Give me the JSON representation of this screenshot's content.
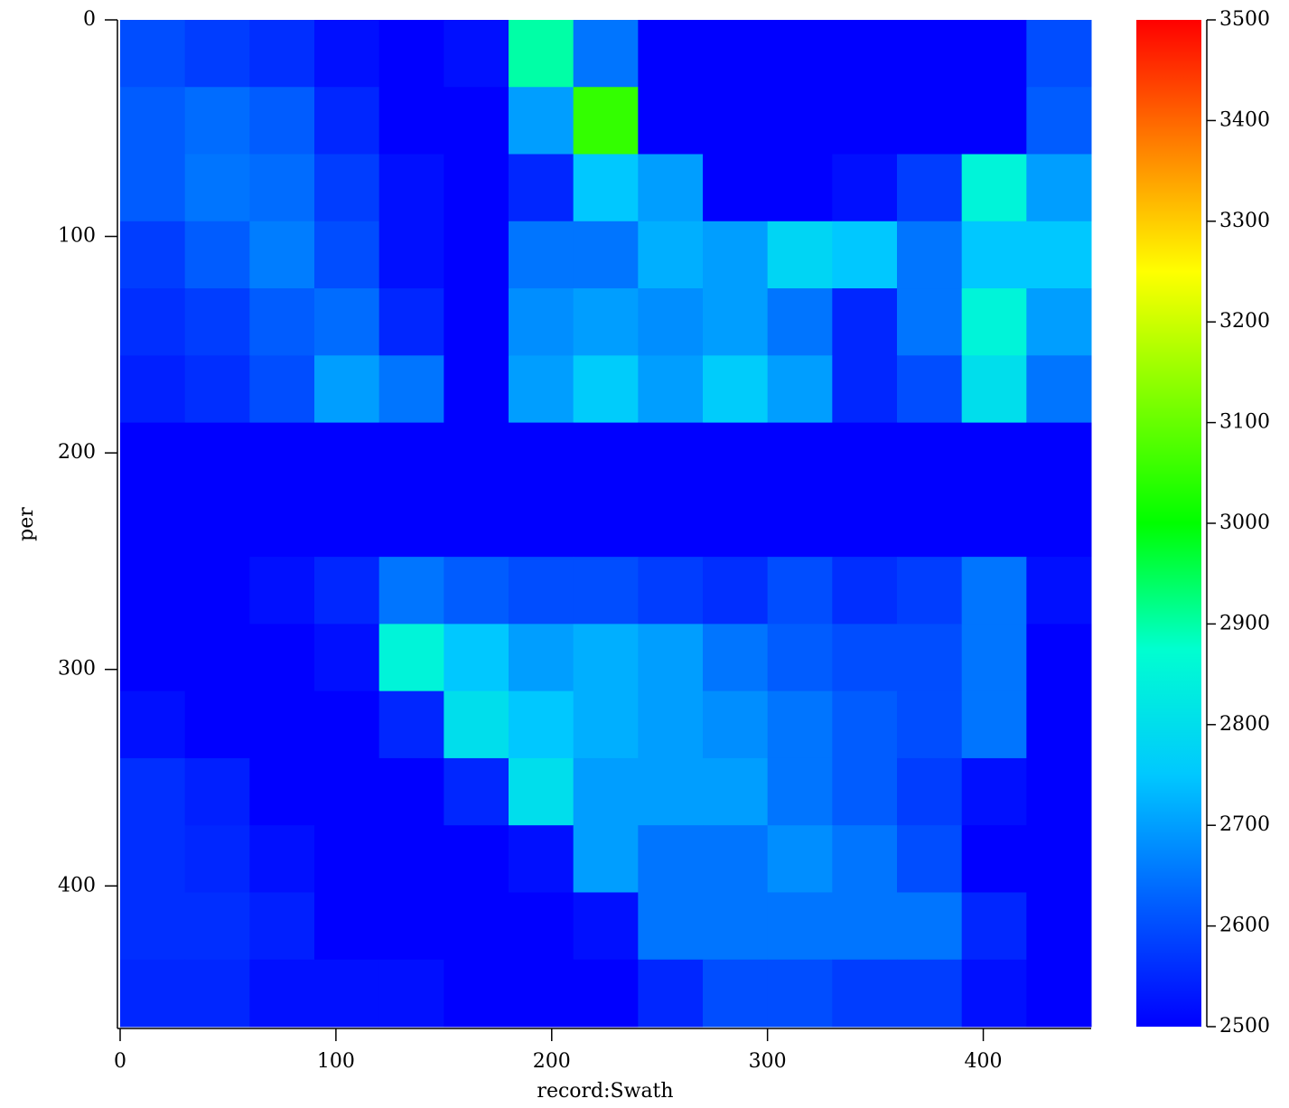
{
  "chart_data": {
    "type": "heatmap",
    "x_label": "record:Swath",
    "y_label": "per",
    "xlim": [
      0,
      450
    ],
    "ylim": [
      0,
      465
    ],
    "y_inverted": true,
    "xticks": [
      0,
      100,
      200,
      300,
      400
    ],
    "yticks": [
      0,
      100,
      200,
      300,
      400
    ],
    "xbins": [
      0,
      30,
      60,
      90,
      120,
      150,
      180,
      210,
      240,
      270,
      300,
      330,
      360,
      390,
      420,
      450
    ],
    "ybins": [
      0,
      31,
      62,
      93,
      124,
      155,
      186,
      217,
      248,
      279,
      310,
      341,
      372,
      403,
      434,
      465
    ],
    "z": [
      [
        2600,
        2580,
        2560,
        2520,
        2500,
        2520,
        2900,
        2650,
        2500,
        2500,
        2500,
        2500,
        2500,
        2500,
        2600
      ],
      [
        2620,
        2640,
        2620,
        2550,
        2500,
        2500,
        2700,
        3050,
        2500,
        2500,
        2500,
        2500,
        2500,
        2500,
        2620
      ],
      [
        2620,
        2650,
        2640,
        2580,
        2520,
        2500,
        2550,
        2750,
        2700,
        2500,
        2500,
        2520,
        2580,
        2850,
        2700
      ],
      [
        2580,
        2620,
        2660,
        2600,
        2520,
        2500,
        2650,
        2650,
        2720,
        2700,
        2780,
        2750,
        2650,
        2750,
        2750
      ],
      [
        2560,
        2580,
        2620,
        2640,
        2550,
        2500,
        2680,
        2700,
        2680,
        2700,
        2650,
        2550,
        2650,
        2850,
        2700
      ],
      [
        2540,
        2560,
        2600,
        2700,
        2650,
        2500,
        2700,
        2760,
        2700,
        2760,
        2700,
        2550,
        2600,
        2800,
        2650
      ],
      [
        2500,
        2500,
        2500,
        2500,
        2500,
        2500,
        2500,
        2500,
        2500,
        2500,
        2500,
        2500,
        2500,
        2500,
        2500
      ],
      [
        2500,
        2500,
        2500,
        2500,
        2500,
        2500,
        2500,
        2500,
        2500,
        2500,
        2500,
        2500,
        2500,
        2500,
        2500
      ],
      [
        2500,
        2500,
        2520,
        2550,
        2650,
        2620,
        2600,
        2600,
        2580,
        2560,
        2600,
        2560,
        2580,
        2650,
        2520
      ],
      [
        2500,
        2500,
        2500,
        2520,
        2850,
        2750,
        2700,
        2720,
        2700,
        2650,
        2620,
        2600,
        2600,
        2650,
        2500
      ],
      [
        2520,
        2500,
        2500,
        2500,
        2550,
        2800,
        2750,
        2720,
        2700,
        2680,
        2650,
        2620,
        2600,
        2650,
        2500
      ],
      [
        2560,
        2540,
        2500,
        2500,
        2500,
        2550,
        2800,
        2700,
        2700,
        2700,
        2650,
        2620,
        2580,
        2520,
        2500
      ],
      [
        2560,
        2550,
        2520,
        2500,
        2500,
        2500,
        2520,
        2700,
        2650,
        2650,
        2680,
        2650,
        2600,
        2500,
        2500
      ],
      [
        2560,
        2560,
        2540,
        2500,
        2500,
        2500,
        2500,
        2520,
        2650,
        2650,
        2650,
        2650,
        2650,
        2550,
        2500
      ],
      [
        2550,
        2550,
        2520,
        2520,
        2520,
        2500,
        2500,
        2500,
        2550,
        2600,
        2600,
        2580,
        2580,
        2520,
        2500
      ]
    ],
    "clim": [
      2500,
      3500
    ],
    "colorbar_ticks": [
      2500,
      2600,
      2700,
      2800,
      2900,
      3000,
      3100,
      3200,
      3300,
      3400,
      3500
    ],
    "colormap": [
      "#0000ff",
      "#0060ff",
      "#00c8ff",
      "#00ffd0",
      "#00ff00",
      "#80ff00",
      "#ffff00",
      "#ff8000",
      "#ff0000"
    ]
  }
}
